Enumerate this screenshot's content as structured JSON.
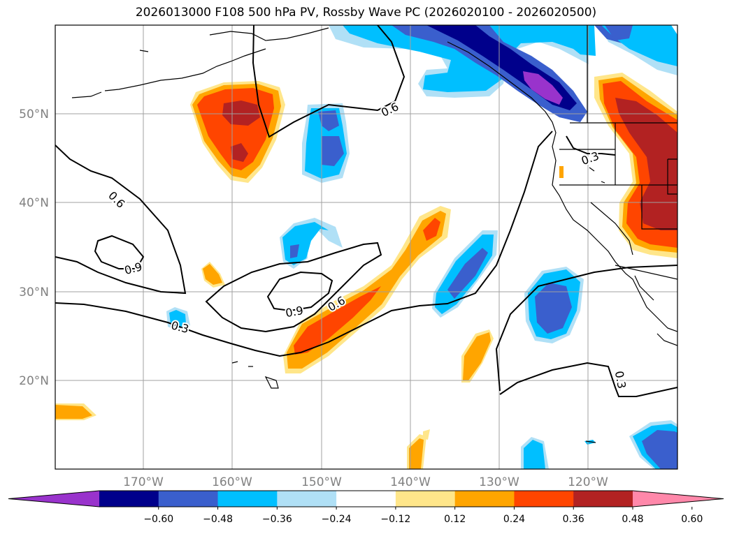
{
  "title": "2026013000 F108 500 hPa PV, Rossby Wave PC (2026020100 - 2026020500)",
  "map": {
    "lat_labels": [
      "50°N",
      "40°N",
      "30°N",
      "20°N"
    ],
    "lon_labels": [
      "170°W",
      "160°W",
      "150°W",
      "140°W",
      "130°W",
      "120°W"
    ],
    "contour_labels": [
      "0.6",
      "0.6",
      "0.9",
      "0.9",
      "0.6",
      "0.3",
      "0.3",
      "0.3"
    ]
  },
  "colorbar": {
    "tick_labels": [
      "−0.60",
      "−0.48",
      "−0.36",
      "−0.24",
      "−0.12",
      "0.12",
      "0.24",
      "0.36",
      "0.48",
      "0.60"
    ],
    "colors": [
      "#9933cc",
      "#00008b",
      "#3a5fcd",
      "#00bfff",
      "#b0e0f6",
      "#ffffff",
      "#ffe68a",
      "#ffa500",
      "#ff4500",
      "#b22222",
      "#ff88aa"
    ]
  },
  "colors": {
    "purple": "#9933cc",
    "navy": "#00008b",
    "blue": "#3a5fcd",
    "sky": "#00bfff",
    "lightblue": "#b0e0f6",
    "yellow": "#ffe68a",
    "orange": "#ffa500",
    "redorange": "#ff4500",
    "firebrick": "#b22222",
    "pink": "#ff88aa"
  }
}
